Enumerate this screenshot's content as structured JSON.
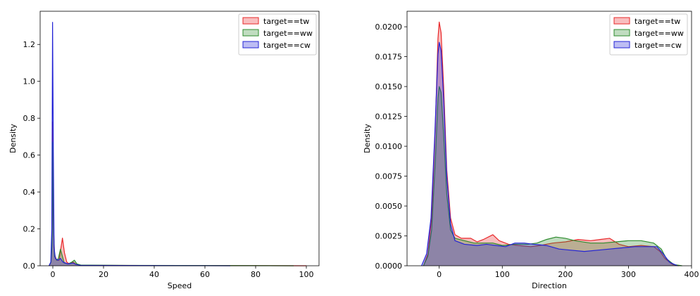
{
  "chart_data": [
    {
      "type": "area",
      "title": "",
      "xlabel": "Speed",
      "ylabel": "Density",
      "xlim": [
        -5,
        105
      ],
      "ylim": [
        0,
        1.38
      ],
      "x_ticks": [
        0,
        20,
        40,
        60,
        80,
        100
      ],
      "y_ticks": [
        0.0,
        0.2,
        0.4,
        0.6,
        0.8,
        1.0,
        1.2
      ],
      "x_tick_labels": [
        "0",
        "20",
        "40",
        "60",
        "80",
        "100"
      ],
      "y_tick_labels": [
        "0.0",
        "0.2",
        "0.4",
        "0.6",
        "0.8",
        "1.0",
        "1.2"
      ],
      "legend_position": "top-right",
      "series": [
        {
          "name": "target==tw",
          "color": "#e8282a",
          "points": [
            [
              -1.5,
              0
            ],
            [
              -0.7,
              0.02
            ],
            [
              -0.3,
              0.15
            ],
            [
              0,
              0.78
            ],
            [
              0.3,
              0.2
            ],
            [
              0.7,
              0.06
            ],
            [
              1.5,
              0.03
            ],
            [
              2.5,
              0.03
            ],
            [
              3,
              0.08
            ],
            [
              3.8,
              0.15
            ],
            [
              4.6,
              0.07
            ],
            [
              5.5,
              0.02
            ],
            [
              6.5,
              0.01
            ],
            [
              8,
              0.02
            ],
            [
              9,
              0.01
            ],
            [
              11,
              0.003
            ],
            [
              20,
              0.002
            ],
            [
              60,
              0.001
            ],
            [
              100,
              0
            ]
          ]
        },
        {
          "name": "target==ww",
          "color": "#2e8b2e",
          "points": [
            [
              -1.5,
              0
            ],
            [
              -0.7,
              0.02
            ],
            [
              -0.3,
              0.12
            ],
            [
              0,
              0.67
            ],
            [
              0.3,
              0.18
            ],
            [
              0.7,
              0.05
            ],
            [
              1.5,
              0.03
            ],
            [
              2.2,
              0.04
            ],
            [
              3,
              0.09
            ],
            [
              3.8,
              0.05
            ],
            [
              4.5,
              0.015
            ],
            [
              6,
              0.01
            ],
            [
              7.5,
              0.02
            ],
            [
              8.5,
              0.03
            ],
            [
              9.5,
              0.01
            ],
            [
              11,
              0.004
            ],
            [
              30,
              0.002
            ],
            [
              70,
              0.001
            ],
            [
              95,
              0
            ]
          ]
        },
        {
          "name": "target==cw",
          "color": "#2323d6",
          "points": [
            [
              -1.5,
              0
            ],
            [
              -0.8,
              0.02
            ],
            [
              -0.4,
              0.2
            ],
            [
              -0.1,
              1.32
            ],
            [
              0.2,
              0.62
            ],
            [
              0.5,
              0.1
            ],
            [
              1,
              0.04
            ],
            [
              2,
              0.03
            ],
            [
              3,
              0.04
            ],
            [
              4,
              0.02
            ],
            [
              6,
              0.01
            ],
            [
              8,
              0.015
            ],
            [
              9,
              0.008
            ],
            [
              11,
              0.002
            ],
            [
              40,
              0.001
            ],
            [
              70,
              0
            ]
          ]
        }
      ]
    },
    {
      "type": "area",
      "title": "",
      "xlabel": "Direction",
      "ylabel": "Density",
      "xlim": [
        -51,
        400
      ],
      "ylim": [
        0,
        0.0213
      ],
      "x_ticks": [
        0,
        100,
        200,
        300,
        400
      ],
      "y_ticks": [
        0.0,
        0.0025,
        0.005,
        0.0075,
        0.01,
        0.0125,
        0.015,
        0.0175,
        0.02
      ],
      "x_tick_labels": [
        "0",
        "100",
        "200",
        "300",
        "400"
      ],
      "y_tick_labels": [
        "0.0000",
        "0.0025",
        "0.0050",
        "0.0075",
        "0.0100",
        "0.0125",
        "0.0150",
        "0.0175",
        "0.0200"
      ],
      "legend_position": "top-right",
      "series": [
        {
          "name": "target==tw",
          "color": "#e8282a",
          "points": [
            [
              -25,
              0
            ],
            [
              -18,
              0.001
            ],
            [
              -12,
              0.004
            ],
            [
              -6,
              0.012
            ],
            [
              -2,
              0.019
            ],
            [
              0,
              0.0204
            ],
            [
              3,
              0.0195
            ],
            [
              7,
              0.015
            ],
            [
              12,
              0.008
            ],
            [
              18,
              0.004
            ],
            [
              25,
              0.0026
            ],
            [
              35,
              0.0023
            ],
            [
              50,
              0.0023
            ],
            [
              60,
              0.002
            ],
            [
              70,
              0.0022
            ],
            [
              85,
              0.0026
            ],
            [
              95,
              0.0021
            ],
            [
              110,
              0.0018
            ],
            [
              125,
              0.0017
            ],
            [
              145,
              0.0016
            ],
            [
              160,
              0.0017
            ],
            [
              180,
              0.0019
            ],
            [
              200,
              0.002
            ],
            [
              220,
              0.0022
            ],
            [
              240,
              0.0021
            ],
            [
              255,
              0.0022
            ],
            [
              270,
              0.0023
            ],
            [
              285,
              0.0018
            ],
            [
              300,
              0.0016
            ],
            [
              320,
              0.0017
            ],
            [
              340,
              0.0016
            ],
            [
              350,
              0.0012
            ],
            [
              358,
              0.0006
            ],
            [
              370,
              0.0001
            ],
            [
              380,
              0
            ]
          ]
        },
        {
          "name": "target==ww",
          "color": "#2e8b2e",
          "points": [
            [
              -25,
              0
            ],
            [
              -18,
              0.0008
            ],
            [
              -12,
              0.003
            ],
            [
              -6,
              0.009
            ],
            [
              -2,
              0.014
            ],
            [
              0,
              0.015
            ],
            [
              3,
              0.0145
            ],
            [
              7,
              0.011
            ],
            [
              12,
              0.006
            ],
            [
              18,
              0.003
            ],
            [
              25,
              0.0023
            ],
            [
              40,
              0.0021
            ],
            [
              55,
              0.0019
            ],
            [
              70,
              0.0019
            ],
            [
              85,
              0.0019
            ],
            [
              100,
              0.0017
            ],
            [
              120,
              0.0018
            ],
            [
              140,
              0.0018
            ],
            [
              155,
              0.0019
            ],
            [
              170,
              0.0022
            ],
            [
              185,
              0.0024
            ],
            [
              200,
              0.0023
            ],
            [
              215,
              0.0021
            ],
            [
              240,
              0.0019
            ],
            [
              260,
              0.0019
            ],
            [
              280,
              0.002
            ],
            [
              300,
              0.0021
            ],
            [
              320,
              0.0021
            ],
            [
              340,
              0.0019
            ],
            [
              352,
              0.0014
            ],
            [
              360,
              0.0006
            ],
            [
              372,
              0.0001
            ],
            [
              385,
              0
            ]
          ]
        },
        {
          "name": "target==cw",
          "color": "#2323d6",
          "points": [
            [
              -28,
              0
            ],
            [
              -20,
              0.001
            ],
            [
              -13,
              0.004
            ],
            [
              -7,
              0.011
            ],
            [
              -2,
              0.0177
            ],
            [
              0,
              0.0187
            ],
            [
              3,
              0.018
            ],
            [
              7,
              0.014
            ],
            [
              12,
              0.0075
            ],
            [
              18,
              0.0035
            ],
            [
              25,
              0.0021
            ],
            [
              40,
              0.0018
            ],
            [
              60,
              0.0017
            ],
            [
              75,
              0.0018
            ],
            [
              90,
              0.0017
            ],
            [
              105,
              0.0016
            ],
            [
              120,
              0.0019
            ],
            [
              135,
              0.0019
            ],
            [
              150,
              0.0018
            ],
            [
              170,
              0.0017
            ],
            [
              190,
              0.0014
            ],
            [
              210,
              0.0013
            ],
            [
              230,
              0.0012
            ],
            [
              250,
              0.0013
            ],
            [
              270,
              0.0014
            ],
            [
              290,
              0.0015
            ],
            [
              310,
              0.0016
            ],
            [
              330,
              0.0016
            ],
            [
              345,
              0.0016
            ],
            [
              355,
              0.001
            ],
            [
              365,
              0.0003
            ],
            [
              378,
              0
            ]
          ]
        }
      ]
    }
  ]
}
